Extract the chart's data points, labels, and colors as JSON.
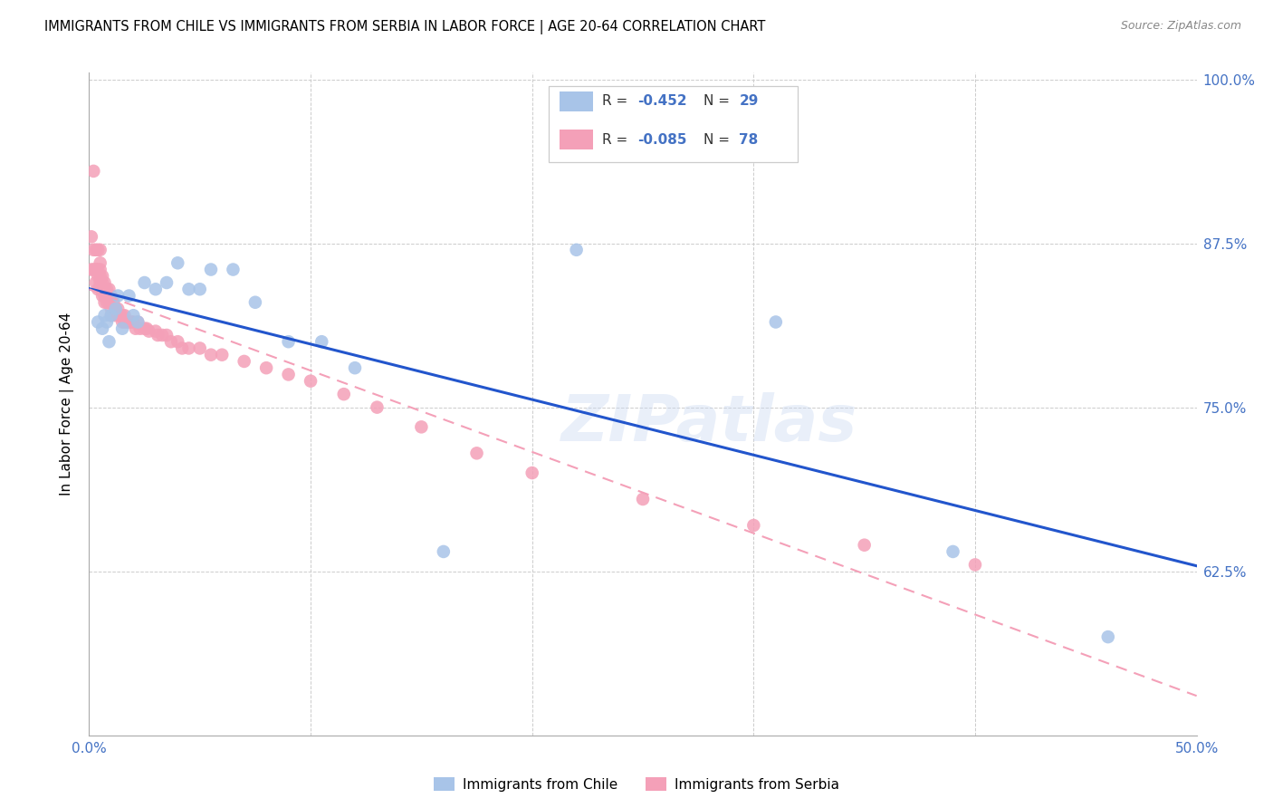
{
  "title": "IMMIGRANTS FROM CHILE VS IMMIGRANTS FROM SERBIA IN LABOR FORCE | AGE 20-64 CORRELATION CHART",
  "source": "Source: ZipAtlas.com",
  "ylabel": "In Labor Force | Age 20-64",
  "xlim": [
    0.0,
    0.5
  ],
  "ylim": [
    0.5,
    1.005
  ],
  "chile_color": "#a8c4e8",
  "serbia_color": "#f4a0b8",
  "trend_chile_color": "#2255cc",
  "trend_serbia_color": "#f4a0b8",
  "watermark_text": "ZIPatlas",
  "grid_color": "#cccccc",
  "chile_R": -0.452,
  "chile_N": 29,
  "serbia_R": -0.085,
  "serbia_N": 78,
  "chile_x": [
    0.004,
    0.006,
    0.007,
    0.008,
    0.009,
    0.01,
    0.012,
    0.013,
    0.015,
    0.018,
    0.02,
    0.022,
    0.025,
    0.03,
    0.035,
    0.04,
    0.045,
    0.05,
    0.055,
    0.065,
    0.075,
    0.09,
    0.105,
    0.12,
    0.16,
    0.22,
    0.31,
    0.39,
    0.46
  ],
  "chile_y": [
    0.815,
    0.81,
    0.82,
    0.815,
    0.8,
    0.82,
    0.825,
    0.835,
    0.81,
    0.835,
    0.82,
    0.815,
    0.845,
    0.84,
    0.845,
    0.86,
    0.84,
    0.84,
    0.855,
    0.855,
    0.83,
    0.8,
    0.8,
    0.78,
    0.64,
    0.87,
    0.815,
    0.64,
    0.575
  ],
  "serbia_x": [
    0.001,
    0.001,
    0.002,
    0.002,
    0.002,
    0.003,
    0.003,
    0.003,
    0.003,
    0.004,
    0.004,
    0.004,
    0.004,
    0.005,
    0.005,
    0.005,
    0.005,
    0.005,
    0.006,
    0.006,
    0.006,
    0.006,
    0.007,
    0.007,
    0.007,
    0.007,
    0.008,
    0.008,
    0.008,
    0.009,
    0.009,
    0.009,
    0.01,
    0.01,
    0.01,
    0.011,
    0.012,
    0.012,
    0.013,
    0.014,
    0.015,
    0.015,
    0.016,
    0.016,
    0.017,
    0.018,
    0.019,
    0.02,
    0.021,
    0.022,
    0.023,
    0.025,
    0.026,
    0.027,
    0.03,
    0.031,
    0.033,
    0.035,
    0.037,
    0.04,
    0.042,
    0.045,
    0.05,
    0.055,
    0.06,
    0.07,
    0.08,
    0.09,
    0.1,
    0.115,
    0.13,
    0.15,
    0.175,
    0.2,
    0.25,
    0.3,
    0.35,
    0.4
  ],
  "serbia_y": [
    0.88,
    0.855,
    0.93,
    0.87,
    0.855,
    0.87,
    0.855,
    0.855,
    0.845,
    0.87,
    0.855,
    0.85,
    0.84,
    0.87,
    0.86,
    0.855,
    0.85,
    0.845,
    0.85,
    0.845,
    0.84,
    0.835,
    0.845,
    0.84,
    0.835,
    0.83,
    0.84,
    0.835,
    0.83,
    0.84,
    0.835,
    0.83,
    0.835,
    0.825,
    0.82,
    0.83,
    0.825,
    0.82,
    0.825,
    0.82,
    0.82,
    0.815,
    0.82,
    0.815,
    0.815,
    0.815,
    0.815,
    0.815,
    0.81,
    0.815,
    0.81,
    0.81,
    0.81,
    0.808,
    0.808,
    0.805,
    0.805,
    0.805,
    0.8,
    0.8,
    0.795,
    0.795,
    0.795,
    0.79,
    0.79,
    0.785,
    0.78,
    0.775,
    0.77,
    0.76,
    0.75,
    0.735,
    0.715,
    0.7,
    0.68,
    0.66,
    0.645,
    0.63
  ]
}
